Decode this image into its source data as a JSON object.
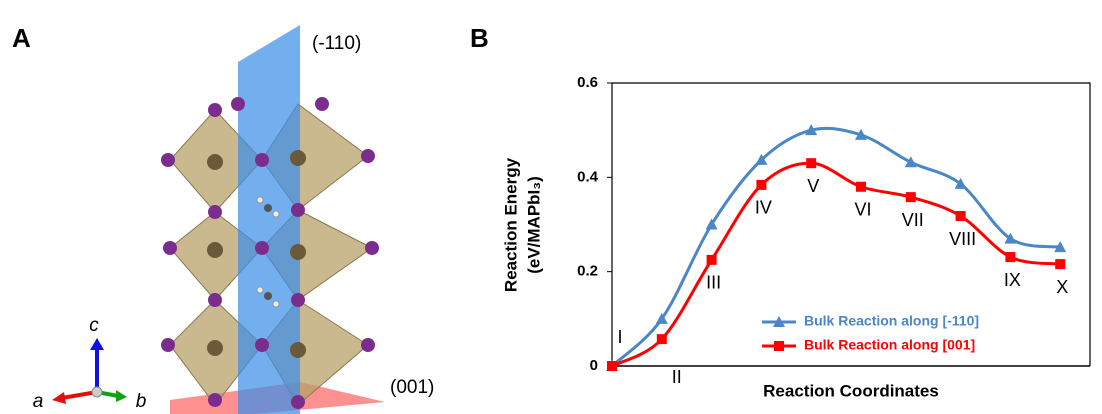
{
  "panel_labels": [
    "A",
    "B"
  ],
  "structure": {
    "plane_labels": [
      "(-110)",
      "(001)"
    ],
    "axis_labels": [
      "c",
      "a",
      "b"
    ]
  },
  "chart_data": {
    "type": "line",
    "y_label": [
      "Reaction Energy",
      "(eV/MAPbI₃)"
    ],
    "x_label": "Reaction Coordinates",
    "categories": [
      "I",
      "II",
      "III",
      "IV",
      "V",
      "VI",
      "VII",
      "VIII",
      "IX",
      "X"
    ],
    "series": [
      {
        "name": "Bulk Reaction along [-110]",
        "color": "#4a86c8",
        "marker": "triangle",
        "values": [
          0,
          0.1,
          0.3,
          0.437,
          0.5,
          0.49,
          0.432,
          0.386,
          0.27,
          0.252
        ]
      },
      {
        "name": "Bulk Reaction along [001]",
        "color": "#ff0000",
        "marker": "square",
        "values": [
          0,
          0.057,
          0.225,
          0.384,
          0.43,
          0.38,
          0.358,
          0.318,
          0.231,
          0.216
        ]
      }
    ],
    "ylim": [
      0,
      0.6
    ],
    "yticks": [
      0,
      0.2,
      0.4,
      0.6
    ],
    "smooth": true
  }
}
